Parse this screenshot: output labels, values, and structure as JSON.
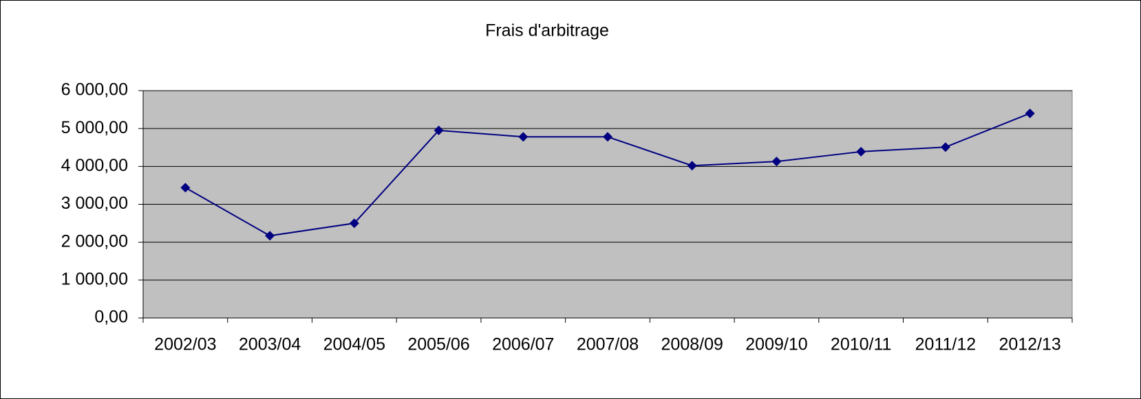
{
  "chart_data": {
    "type": "line",
    "title": "Frais d'arbitrage",
    "categories": [
      "2002/03",
      "2003/04",
      "2004/05",
      "2005/06",
      "2006/07",
      "2007/08",
      "2008/09",
      "2009/10",
      "2010/11",
      "2011/12",
      "2012/13"
    ],
    "series": [
      {
        "name": "Frais d'arbitrage",
        "color": "#000080",
        "values": [
          3440,
          2170,
          2500,
          4950,
          4780,
          4780,
          4020,
          4130,
          4390,
          4510,
          5400
        ]
      }
    ],
    "ylim": [
      0,
      6000
    ],
    "yticks": [
      {
        "value": 0,
        "label": "0,00"
      },
      {
        "value": 1000,
        "label": "1 000,00"
      },
      {
        "value": 2000,
        "label": "2 000,00"
      },
      {
        "value": 3000,
        "label": "3 000,00"
      },
      {
        "value": 4000,
        "label": "4 000,00"
      },
      {
        "value": 5000,
        "label": "5 000,00"
      },
      {
        "value": 6000,
        "label": "6 000,00"
      }
    ],
    "grid": true,
    "plot_background": "#c0c0c0"
  }
}
